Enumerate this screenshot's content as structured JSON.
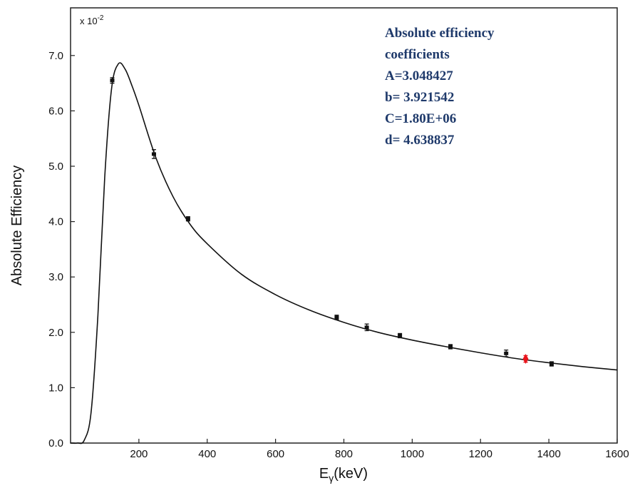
{
  "chart_data": {
    "type": "scatter",
    "xlabel_main": "E",
    "xlabel_sub": "γ",
    "xlabel_unit": "(keV)",
    "ylabel": "Absolute Efficiency",
    "y_multiplier_base": "x 10",
    "y_multiplier_exp": "-2",
    "xlim": [
      0,
      1600
    ],
    "ylim": [
      0,
      8.0
    ],
    "x_ticks": [
      200,
      400,
      600,
      800,
      1000,
      1200,
      1400,
      1600
    ],
    "x_tick_labels": [
      "200",
      "400",
      "600",
      "800",
      "1000",
      "1200",
      "1400",
      "1600"
    ],
    "y_ticks": [
      0,
      1,
      2,
      3,
      4,
      5,
      6,
      7
    ],
    "y_tick_labels": [
      "0.0",
      "1.0",
      "2.0",
      "3.0",
      "4.0",
      "5.0",
      "6.0",
      "7.0"
    ],
    "grid": false,
    "annotation": {
      "lines": [
        "Absolute efficiency",
        "coefficients",
        "A=3.048427",
        "b= 3.921542",
        "C=1.80E+06",
        "d= 4.638837"
      ],
      "color": "#1f3a6b"
    },
    "series": [
      {
        "type": "scatter_errorbar",
        "color": "#111111",
        "points": [
          {
            "x": 122,
            "y": 6.55,
            "err": 0.05
          },
          {
            "x": 244,
            "y": 5.22,
            "err": 0.08
          },
          {
            "x": 344,
            "y": 4.05,
            "err": 0.03
          },
          {
            "x": 779,
            "y": 2.27,
            "err": 0.04
          },
          {
            "x": 867,
            "y": 2.09,
            "err": 0.06
          },
          {
            "x": 964,
            "y": 1.94,
            "err": 0.03
          },
          {
            "x": 1112,
            "y": 1.74,
            "err": 0.03
          },
          {
            "x": 1275,
            "y": 1.62,
            "err": 0.06
          },
          {
            "x": 1408,
            "y": 1.43,
            "err": 0.03
          }
        ]
      },
      {
        "type": "scatter_highlight",
        "color": "#e8141c",
        "points": [
          {
            "x": 1332,
            "y": 1.52,
            "err": 0.06
          }
        ]
      },
      {
        "type": "line",
        "color": "#111111",
        "x": [
          0,
          20,
          40,
          60,
          80,
          100,
          120,
          140,
          160,
          180,
          200,
          250,
          300,
          350,
          400,
          500,
          600,
          700,
          800,
          900,
          1000,
          1100,
          1200,
          1300,
          1400,
          1500,
          1600
        ],
        "y": [
          0.0,
          0.0,
          0.05,
          0.55,
          2.3,
          4.8,
          6.4,
          6.85,
          6.75,
          6.45,
          6.1,
          5.15,
          4.45,
          3.95,
          3.6,
          3.05,
          2.68,
          2.4,
          2.18,
          2.0,
          1.86,
          1.74,
          1.63,
          1.53,
          1.45,
          1.38,
          1.32
        ]
      }
    ]
  }
}
